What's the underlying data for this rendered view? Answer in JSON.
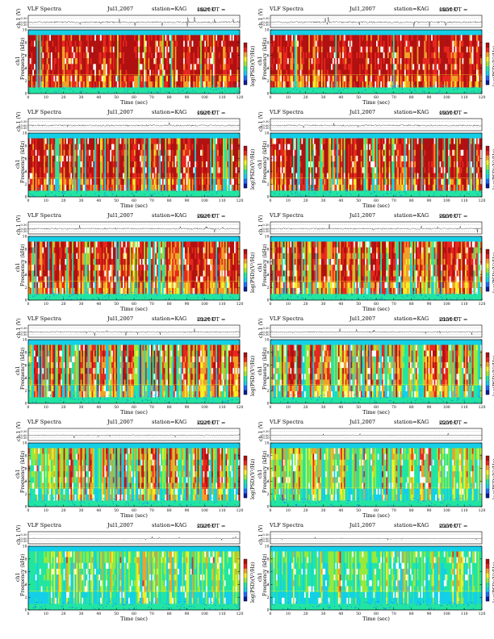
{
  "colors": {
    "colormap": [
      "#081d9c",
      "#1f6bff",
      "#14cfe8",
      "#22e6a0",
      "#9be83a",
      "#f4ef26",
      "#f2a028",
      "#e8261e",
      "#b11010"
    ],
    "frame": "#000000",
    "waveform": "#333333"
  },
  "labels": {
    "title": "VLF Spectra",
    "date": "Jul1,2007",
    "station": "station=KAG",
    "ut_prefix": "start  UT =",
    "waveform_ylabel": "ch.1 (V)",
    "spectrogram_ylabel": "Frequency (kHz)",
    "channel_label": "ch1",
    "xlabel": "Time (sec)",
    "colorbar_label": "log(PSD)(V²/Hz)"
  },
  "chart_data": [
    {
      "type": "heatmap",
      "start_ut": "1820:0",
      "activity": 0.95,
      "xlim": [
        0,
        120
      ],
      "xticks": [
        0,
        10,
        20,
        30,
        40,
        50,
        60,
        70,
        80,
        90,
        100,
        110,
        120
      ],
      "ylim": [
        0,
        10
      ],
      "yticks": [
        0,
        2,
        4,
        6,
        8,
        10
      ],
      "wave_ylim": [
        -0.3,
        0.3
      ],
      "wave_ticks": [
        "0.30",
        "0.00",
        "-0.30"
      ]
    },
    {
      "type": "heatmap",
      "start_ut": "1850:0",
      "activity": 0.93,
      "xlim": [
        0,
        120
      ],
      "xticks": [
        0,
        10,
        20,
        30,
        40,
        50,
        60,
        70,
        80,
        90,
        100,
        110,
        120
      ],
      "ylim": [
        0,
        10
      ],
      "yticks": [
        0,
        2,
        4,
        6,
        8,
        10
      ],
      "wave_ylim": [
        -0.3,
        0.3
      ],
      "wave_ticks": [
        "0.30",
        "0.00",
        "-0.30"
      ]
    },
    {
      "type": "heatmap",
      "start_ut": "1920:0",
      "activity": 0.85,
      "xlim": [
        0,
        120
      ],
      "xticks": [
        0,
        10,
        20,
        30,
        40,
        50,
        60,
        70,
        80,
        90,
        100,
        110,
        120
      ],
      "ylim": [
        0,
        10
      ],
      "yticks": [
        0,
        2,
        4,
        6,
        8,
        10
      ],
      "wave_ylim": [
        -0.3,
        0.3
      ],
      "wave_ticks": [
        "0.30",
        "0.00",
        "-0.30"
      ]
    },
    {
      "type": "heatmap",
      "start_ut": "1950:0",
      "activity": 0.83,
      "xlim": [
        0,
        120
      ],
      "xticks": [
        0,
        10,
        20,
        30,
        40,
        50,
        60,
        70,
        80,
        90,
        100,
        110,
        120
      ],
      "ylim": [
        0,
        10
      ],
      "yticks": [
        0,
        2,
        4,
        6,
        8,
        10
      ],
      "wave_ylim": [
        -0.3,
        0.3
      ],
      "wave_ticks": [
        "0.30",
        "0.00",
        "-0.30"
      ]
    },
    {
      "type": "heatmap",
      "start_ut": "2020:0",
      "activity": 0.78,
      "xlim": [
        0,
        120
      ],
      "xticks": [
        0,
        10,
        20,
        30,
        40,
        50,
        60,
        70,
        80,
        90,
        100,
        110,
        120
      ],
      "ylim": [
        0,
        10
      ],
      "yticks": [
        0,
        2,
        4,
        6,
        8,
        10
      ],
      "wave_ylim": [
        -0.3,
        0.3
      ],
      "wave_ticks": [
        "0.30",
        "0.00",
        "-0.30"
      ]
    },
    {
      "type": "heatmap",
      "start_ut": "2050:0",
      "activity": 0.74,
      "xlim": [
        0,
        120
      ],
      "xticks": [
        0,
        10,
        20,
        30,
        40,
        50,
        60,
        70,
        80,
        90,
        100,
        110,
        120
      ],
      "ylim": [
        0,
        10
      ],
      "yticks": [
        0,
        2,
        4,
        6,
        8,
        10
      ],
      "wave_ylim": [
        -0.3,
        0.3
      ],
      "wave_ticks": [
        "0.30",
        "0.00",
        "-0.30"
      ]
    },
    {
      "type": "heatmap",
      "start_ut": "2120:0",
      "activity": 0.62,
      "xlim": [
        0,
        120
      ],
      "xticks": [
        0,
        10,
        20,
        30,
        40,
        50,
        60,
        70,
        80,
        90,
        100,
        110,
        120
      ],
      "ylim": [
        0,
        10
      ],
      "yticks": [
        0,
        2,
        4,
        6,
        8,
        10
      ],
      "wave_ylim": [
        -0.3,
        0.3
      ],
      "wave_ticks": [
        "0.30",
        "0.00",
        "-0.30"
      ]
    },
    {
      "type": "heatmap",
      "start_ut": "2150:0",
      "activity": 0.55,
      "xlim": [
        0,
        120
      ],
      "xticks": [
        0,
        10,
        20,
        30,
        40,
        50,
        60,
        70,
        80,
        90,
        100,
        110,
        120
      ],
      "ylim": [
        0,
        10
      ],
      "yticks": [
        0,
        2,
        4,
        6,
        8,
        10
      ],
      "wave_ylim": [
        -0.3,
        0.3
      ],
      "wave_ticks": [
        "0.30",
        "0.00",
        "-0.30"
      ]
    },
    {
      "type": "heatmap",
      "start_ut": "2220:0",
      "activity": 0.45,
      "xlim": [
        0,
        120
      ],
      "xticks": [
        0,
        10,
        20,
        30,
        40,
        50,
        60,
        70,
        80,
        90,
        100,
        110,
        120
      ],
      "ylim": [
        0,
        10
      ],
      "yticks": [
        0,
        2,
        4,
        6,
        8,
        10
      ],
      "wave_ylim": [
        -0.3,
        0.3
      ],
      "wave_ticks": [
        "0.30",
        "0.00",
        "-0.30"
      ]
    },
    {
      "type": "heatmap",
      "start_ut": "2250:0",
      "activity": 0.3,
      "xlim": [
        0,
        120
      ],
      "xticks": [
        0,
        10,
        20,
        30,
        40,
        50,
        60,
        70,
        80,
        90,
        100,
        110,
        120
      ],
      "ylim": [
        0,
        10
      ],
      "yticks": [
        0,
        2,
        4,
        6,
        8,
        10
      ],
      "wave_ylim": [
        -0.3,
        0.3
      ],
      "wave_ticks": [
        "0.30",
        "0.00",
        "-0.30"
      ]
    },
    {
      "type": "heatmap",
      "start_ut": "2320:0",
      "activity": 0.18,
      "xlim": [
        0,
        120
      ],
      "xticks": [
        0,
        10,
        20,
        30,
        40,
        50,
        60,
        70,
        80,
        90,
        100,
        110,
        120
      ],
      "ylim": [
        0,
        10
      ],
      "yticks": [
        0,
        2,
        4,
        6,
        8,
        10
      ],
      "wave_ylim": [
        -0.3,
        0.3
      ],
      "wave_ticks": [
        "0.30",
        "0.00",
        "-0.30"
      ]
    },
    {
      "type": "heatmap",
      "start_ut": "2350:0",
      "activity": 0.12,
      "xlim": [
        0,
        120
      ],
      "xticks": [
        0,
        10,
        20,
        30,
        40,
        50,
        60,
        70,
        80,
        90,
        100,
        110,
        120
      ],
      "ylim": [
        0,
        10
      ],
      "yticks": [
        0,
        2,
        4,
        6,
        8,
        10
      ],
      "wave_ylim": [
        -0.3,
        0.3
      ],
      "wave_ticks": [
        "0.30",
        "0.00",
        "-0.30"
      ]
    }
  ]
}
